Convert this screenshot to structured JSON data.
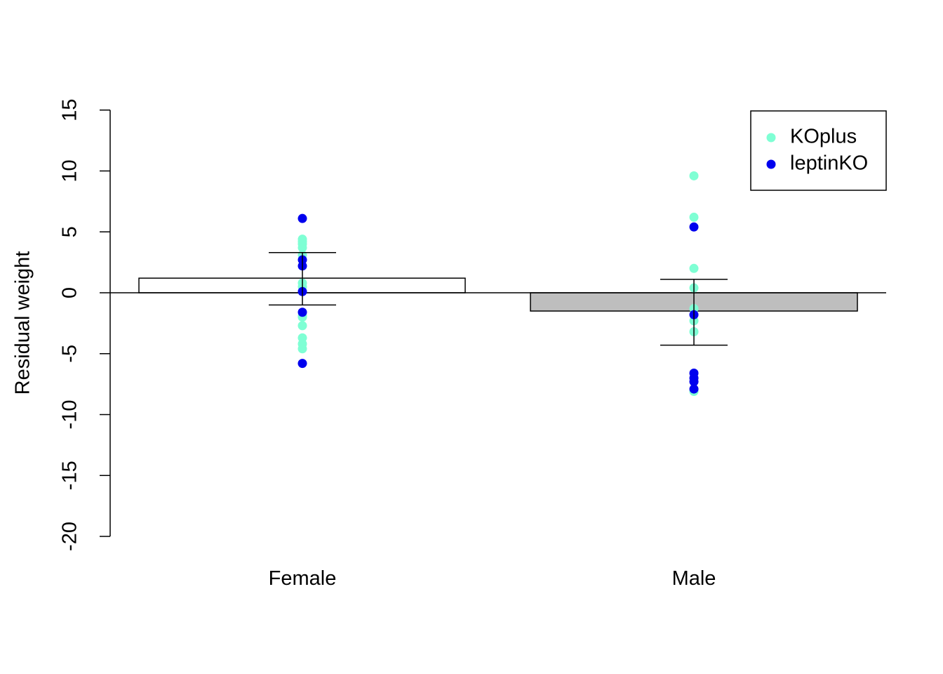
{
  "chart_data": {
    "type": "bar",
    "categories": [
      "Female",
      "Male"
    ],
    "values": [
      1.2,
      -1.5
    ],
    "bar_fills": [
      "#ffffff",
      "#bebebe"
    ],
    "error_bars": [
      {
        "low": -1.0,
        "high": 3.3
      },
      {
        "low": -4.3,
        "high": 1.1
      }
    ],
    "ylabel": "Residual weight",
    "ylim": [
      -20,
      15
    ],
    "yticks": [
      -20,
      -15,
      -10,
      -5,
      0,
      5,
      10,
      15
    ],
    "ytick_labels": [
      "-20",
      "-15",
      "-10",
      "-5",
      "0",
      "5",
      "10",
      "15"
    ],
    "zero_line": true,
    "legend_position": "top-right",
    "series": [
      {
        "name": "KOplus",
        "color": "#7fffd4",
        "points": [
          {
            "category": "Female",
            "values": [
              4.4,
              4.2,
              4.0,
              3.7,
              3.1,
              0.8,
              0.5,
              -1.9,
              -2.0,
              -2.7,
              -3.7,
              -4.2,
              -4.6
            ]
          },
          {
            "category": "Male",
            "values": [
              9.6,
              6.2,
              2.0,
              0.4,
              -1.3,
              -2.3,
              -3.2,
              -8.1
            ]
          }
        ]
      },
      {
        "name": "leptinKO",
        "color": "#0000ee",
        "points": [
          {
            "category": "Female",
            "values": [
              6.1,
              2.7,
              2.2,
              0.1,
              -1.6,
              -5.8
            ]
          },
          {
            "category": "Male",
            "values": [
              5.4,
              -1.8,
              -6.6,
              -7.0,
              -7.3,
              -7.9
            ]
          }
        ]
      }
    ]
  }
}
